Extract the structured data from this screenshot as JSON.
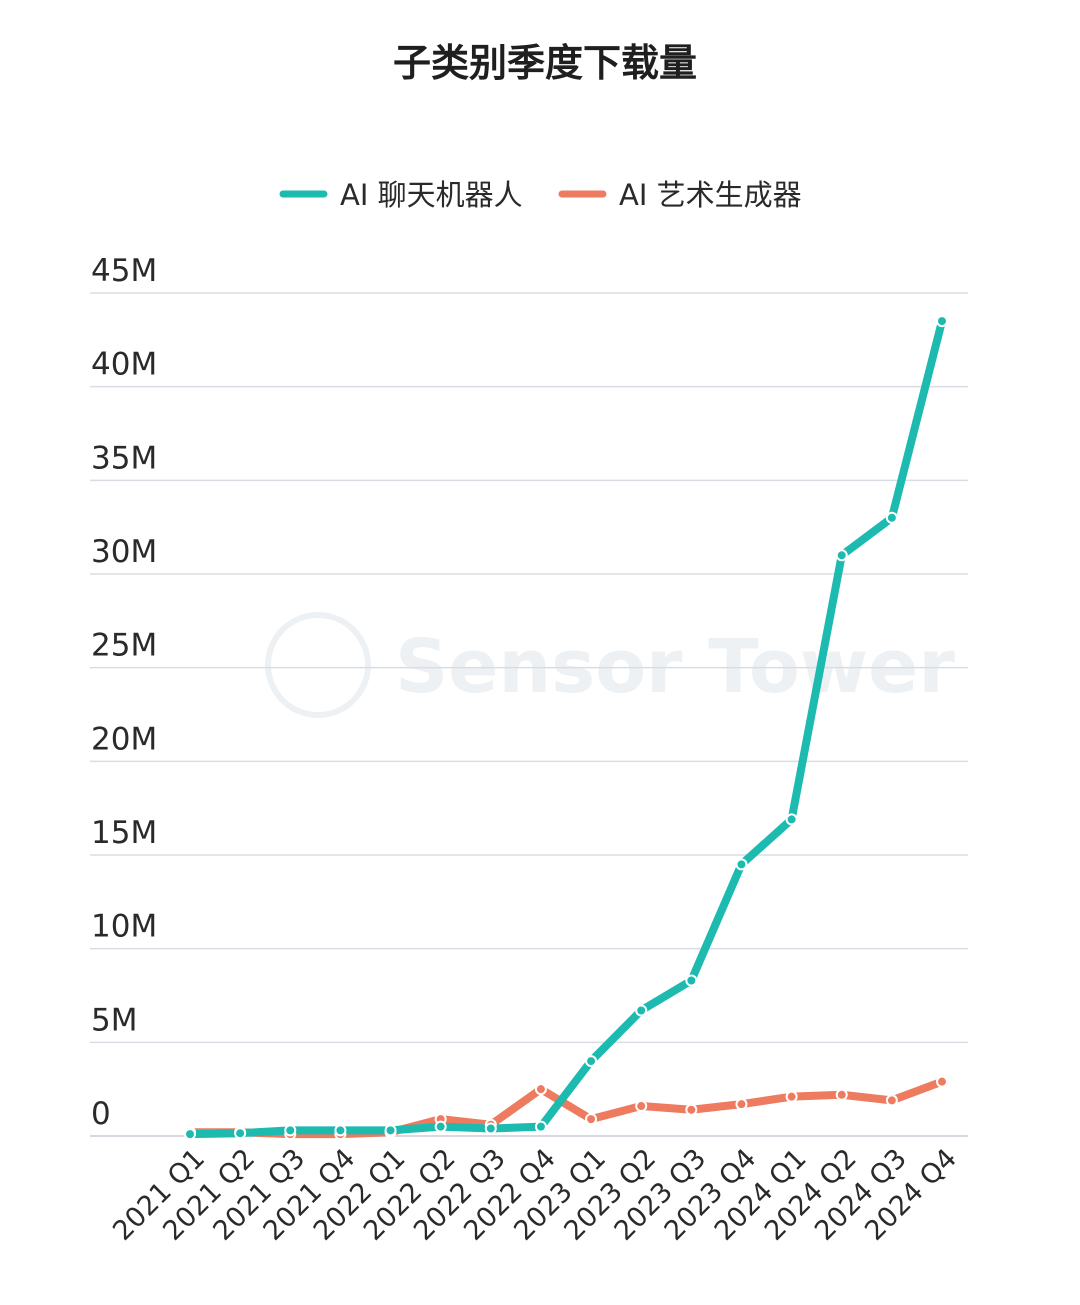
{
  "chart_data": {
    "type": "line",
    "title": "子类别季度下载量",
    "xlabel": "",
    "ylabel": "",
    "categories": [
      "2021 Q1",
      "2021 Q2",
      "2021 Q3",
      "2021 Q4",
      "2022 Q1",
      "2022 Q2",
      "2022 Q3",
      "2022 Q4",
      "2023 Q1",
      "2023 Q2",
      "2023 Q3",
      "2023 Q4",
      "2024 Q1",
      "2024 Q2",
      "2024 Q3",
      "2024 Q4"
    ],
    "ylim": [
      0,
      45000000
    ],
    "yticks": [
      0,
      5000000,
      10000000,
      15000000,
      20000000,
      25000000,
      30000000,
      35000000,
      40000000,
      45000000
    ],
    "ytick_labels": [
      "0",
      "5M",
      "10M",
      "15M",
      "20M",
      "25M",
      "30M",
      "35M",
      "40M",
      "45M"
    ],
    "grid": true,
    "legend_position": "top-center",
    "series": [
      {
        "name": "AI 聊天机器人",
        "color": "#1dbab0",
        "values": [
          100000,
          150000,
          300000,
          300000,
          300000,
          500000,
          400000,
          500000,
          4000000,
          6700000,
          8300000,
          14500000,
          16900000,
          31000000,
          33000000,
          43500000
        ]
      },
      {
        "name": "AI 艺术生成器",
        "color": "#ee7b5f",
        "values": [
          200000,
          200000,
          100000,
          100000,
          200000,
          900000,
          600000,
          2500000,
          900000,
          1600000,
          1400000,
          1700000,
          2100000,
          2200000,
          1900000,
          2900000
        ]
      }
    ]
  },
  "watermark": {
    "text": "Sensor Tower"
  }
}
